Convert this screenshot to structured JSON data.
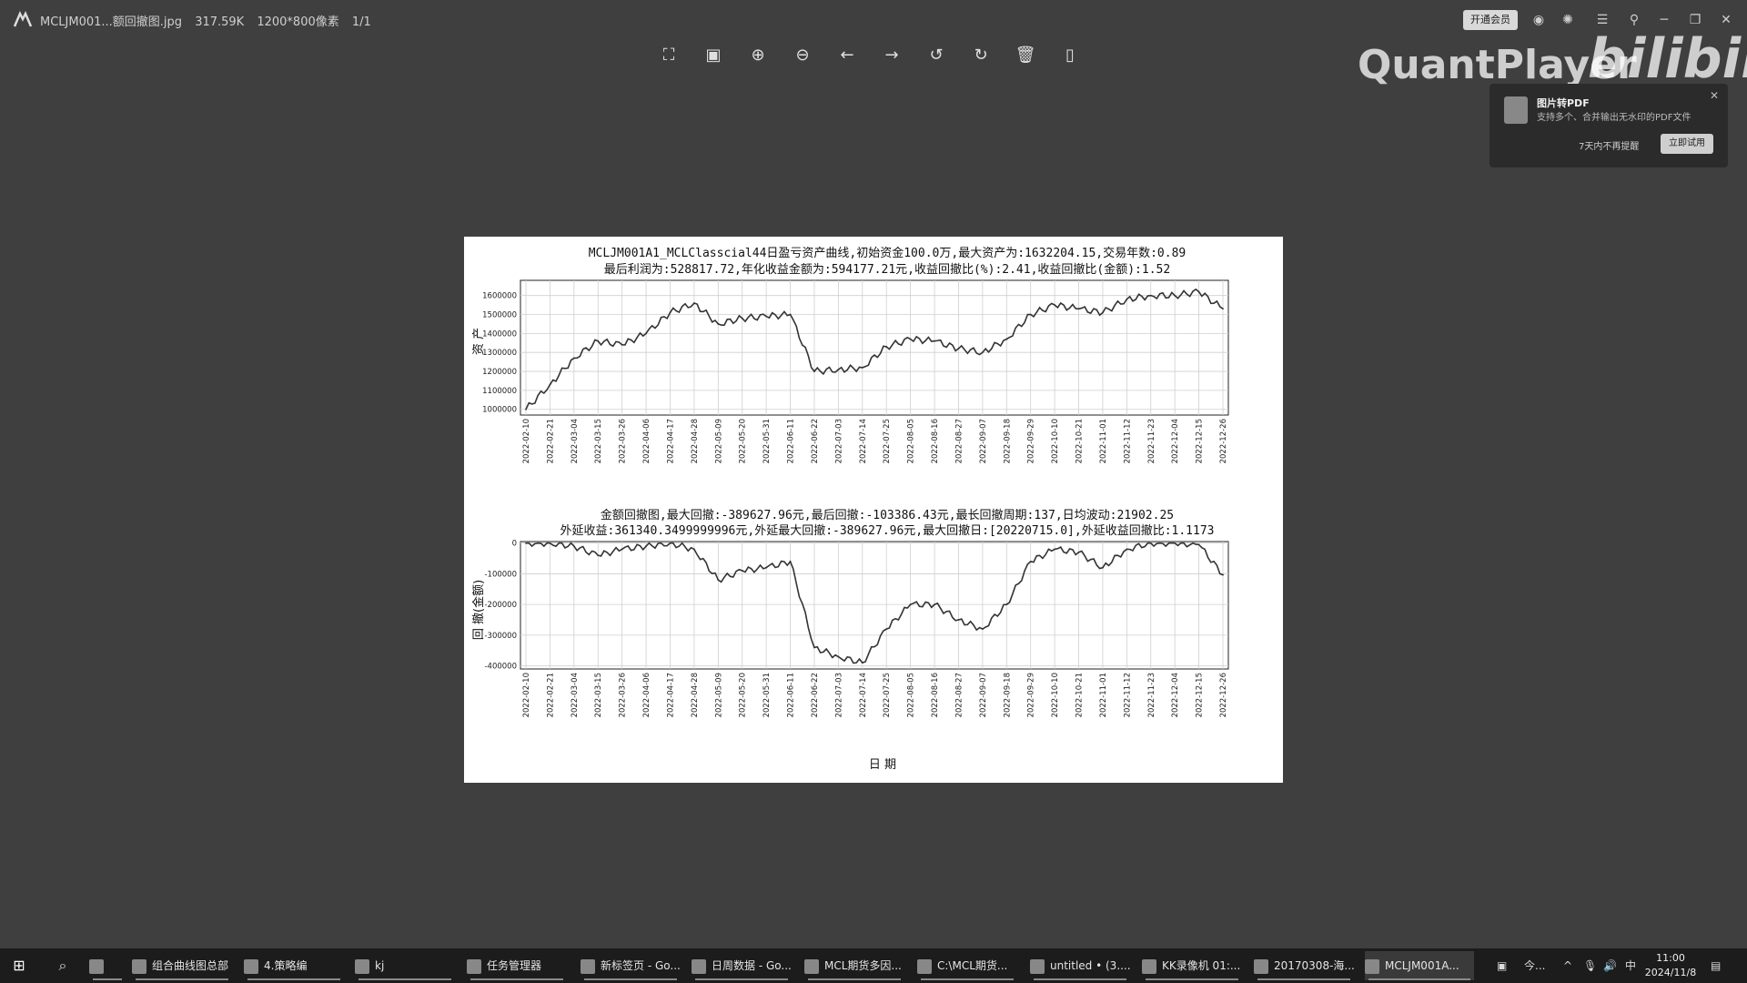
{
  "titlebar": {
    "filename": "MCLJM001...额回撤图.jpg",
    "filesize": "317.59K",
    "dimensions": "1200*800像素",
    "page": "1/1",
    "vip_label": "开通会员"
  },
  "toolbar": {
    "icons": [
      "fullscreen-icon",
      "fit-window-icon",
      "zoom-in-icon",
      "zoom-out-icon",
      "previous-icon",
      "next-icon",
      "rotate-left-icon",
      "rotate-right-icon",
      "delete-icon",
      "more-icon"
    ]
  },
  "watermark": {
    "text": "QuantPlayer",
    "brand": "bilibili"
  },
  "popup": {
    "title": "图片转PDF",
    "desc": "支持多个、合并输出无水印的PDF文件",
    "skip": "7天内不再提醒",
    "button": "立即试用"
  },
  "chart_data": [
    {
      "type": "line",
      "title": "MCLJM001A1_MCLClasscial44日盈亏资产曲线,初始资金100.0万,最大资产为:1632204.15,交易年数:0.89",
      "subtitle": "最后利润为:528817.72,年化收益金额为:594177.21元,收益回撤比(%):2.41,收益回撤比(金额):1.52",
      "ylabel": "资 产",
      "ylim": [
        970000,
        1680000
      ],
      "yticks": [
        "1000000",
        "1100000",
        "1200000",
        "1300000",
        "1400000",
        "1500000",
        "1600000"
      ],
      "x": [
        "2022-02-10",
        "2022-02-21",
        "2022-03-04",
        "2022-03-15",
        "2022-03-26",
        "2022-04-06",
        "2022-04-17",
        "2022-04-28",
        "2022-05-09",
        "2022-05-20",
        "2022-05-31",
        "2022-06-11",
        "2022-06-22",
        "2022-07-03",
        "2022-07-14",
        "2022-07-25",
        "2022-08-05",
        "2022-08-16",
        "2022-08-27",
        "2022-09-07",
        "2022-09-18",
        "2022-09-29",
        "2022-10-10",
        "2022-10-21",
        "2022-11-01",
        "2022-11-12",
        "2022-11-23",
        "2022-12-04",
        "2022-12-15",
        "2022-12-26"
      ],
      "values": [
        1000000,
        1130000,
        1270000,
        1360000,
        1340000,
        1400000,
        1510000,
        1560000,
        1450000,
        1480000,
        1490000,
        1500000,
        1200000,
        1210000,
        1220000,
        1330000,
        1370000,
        1360000,
        1320000,
        1300000,
        1370000,
        1500000,
        1550000,
        1530000,
        1510000,
        1580000,
        1600000,
        1600000,
        1620000,
        1530000
      ]
    },
    {
      "type": "line",
      "title": "金额回撤图,最大回撤:-389627.96元,最后回撤:-103386.43元,最长回撤周期:137,日均波动:21902.25",
      "subtitle": "外延收益:361340.3499999996元,外延最大回撤:-389627.96元,最大回撤日:[20220715.0],外延收益回撤比:1.1173",
      "ylabel": "回 撤(金额)",
      "xlabel": "日 期",
      "ylim": [
        -410000,
        5000
      ],
      "yticks": [
        "0",
        "-100000",
        "-200000",
        "-300000",
        "-400000"
      ],
      "x": [
        "2022-02-10",
        "2022-02-21",
        "2022-03-04",
        "2022-03-15",
        "2022-03-26",
        "2022-04-06",
        "2022-04-17",
        "2022-04-28",
        "2022-05-09",
        "2022-05-20",
        "2022-05-31",
        "2022-06-11",
        "2022-06-22",
        "2022-07-03",
        "2022-07-14",
        "2022-07-25",
        "2022-08-05",
        "2022-08-16",
        "2022-08-27",
        "2022-09-07",
        "2022-09-18",
        "2022-09-29",
        "2022-10-10",
        "2022-10-21",
        "2022-11-01",
        "2022-11-12",
        "2022-11-23",
        "2022-12-04",
        "2022-12-15",
        "2022-12-26"
      ],
      "values": [
        0,
        0,
        -10000,
        -40000,
        -20000,
        -10000,
        0,
        -20000,
        -120000,
        -90000,
        -80000,
        -60000,
        -340000,
        -370000,
        -389628,
        -280000,
        -200000,
        -200000,
        -250000,
        -280000,
        -200000,
        -60000,
        -20000,
        -30000,
        -80000,
        -20000,
        0,
        0,
        -5000,
        -103386
      ]
    }
  ],
  "taskbar": {
    "items": [
      {
        "label": "",
        "icon": "file-explorer-icon"
      },
      {
        "label": "组合曲线图总部",
        "icon": "document-icon"
      },
      {
        "label": "4.策略编",
        "icon": "document-icon"
      },
      {
        "label": "kj",
        "icon": "document-icon"
      },
      {
        "label": "任务管理器",
        "icon": "task-manager-icon"
      },
      {
        "label": "新标签页 - Go...",
        "icon": "chrome-icon"
      },
      {
        "label": "日周数据 - Go...",
        "icon": "chrome-icon"
      },
      {
        "label": "MCL期货多因...",
        "icon": "app-icon"
      },
      {
        "label": "C:\\MCL期货...",
        "icon": "terminal-icon"
      },
      {
        "label": "untitled • (3....",
        "icon": "editor-icon"
      },
      {
        "label": "KK录像机 01:...",
        "icon": "recorder-icon"
      },
      {
        "label": "20170308-海...",
        "icon": "image-icon"
      },
      {
        "label": "MCLJM001A...",
        "icon": "viewer-icon"
      }
    ],
    "tray_lang": "今...",
    "ime": "中",
    "time": "11:00",
    "date": "2024/11/8"
  }
}
